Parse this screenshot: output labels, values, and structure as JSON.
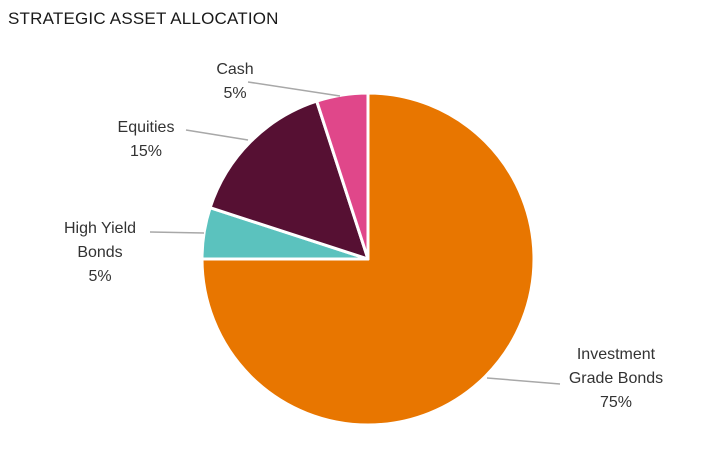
{
  "chart_data": {
    "type": "pie",
    "title": "STRATEGIC ASSET ALLOCATION",
    "slices": [
      {
        "label_lines": [
          "Investment",
          "Grade Bonds"
        ],
        "value": 75,
        "value_label": "75%",
        "color": "#e87600"
      },
      {
        "label_lines": [
          "High Yield",
          "Bonds"
        ],
        "value": 5,
        "value_label": "5%",
        "color": "#5bc2be"
      },
      {
        "label_lines": [
          "Equities"
        ],
        "value": 15,
        "value_label": "15%",
        "color": "#561033"
      },
      {
        "label_lines": [
          "Cash"
        ],
        "value": 5,
        "value_label": "5%",
        "color": "#e0478a"
      }
    ],
    "legend": "none",
    "labels": "outside-with-leader-lines"
  }
}
